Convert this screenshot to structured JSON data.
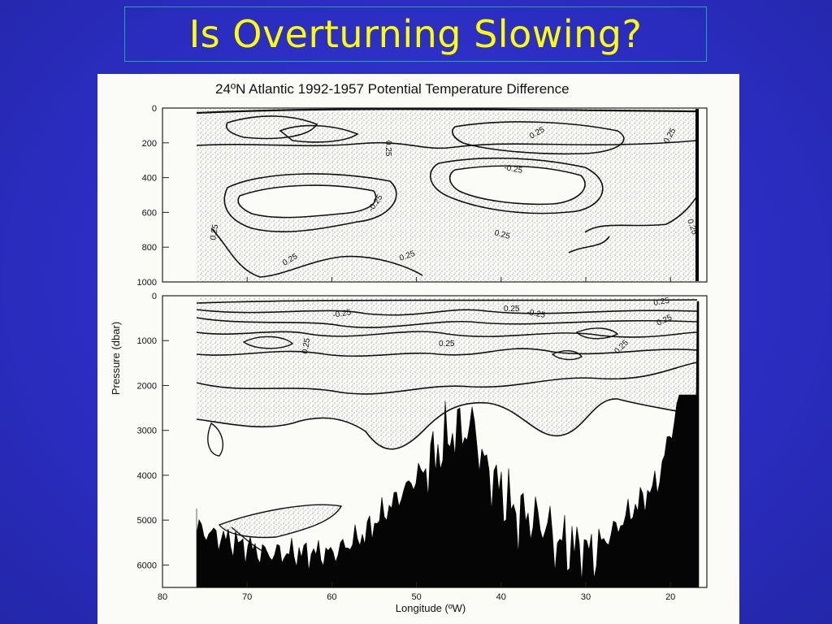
{
  "slide": {
    "title": "Is Overturning Slowing?",
    "background_color": "#2c2fc6",
    "title_color": "#ffff00"
  },
  "chart_data": {
    "type": "contour",
    "title": "24ºN Atlantic 1992-1957 Potential Temperature Difference",
    "xlabel": "Longitude (ºW)",
    "ylabel": "Pressure (dbar)",
    "x_ticks": [
      "80",
      "70",
      "60",
      "50",
      "40",
      "30",
      "20"
    ],
    "xlim": [
      80,
      15
    ],
    "panels": [
      {
        "name": "upper",
        "ylim": [
          0,
          1000
        ],
        "y_ticks": [
          "0",
          "200",
          "400",
          "600",
          "800",
          "1000"
        ],
        "contour_labels": [
          "0.25",
          "0.25",
          "0.25",
          "-0.25",
          "-0.25",
          "0.25",
          "0.25",
          "0.25",
          "0.25",
          "0.25"
        ]
      },
      {
        "name": "lower",
        "ylim": [
          0,
          6500
        ],
        "y_ticks": [
          "0",
          "1000",
          "2000",
          "3000",
          "4000",
          "5000",
          "6000"
        ],
        "contour_labels": [
          "-0.25",
          "-0.25",
          "0.25",
          "0.25",
          "0.25",
          "0.25",
          "0.25",
          "0.25"
        ]
      }
    ],
    "contour_interval": 0.25,
    "stippled": "positive differences",
    "bathymetry": "black fill"
  }
}
